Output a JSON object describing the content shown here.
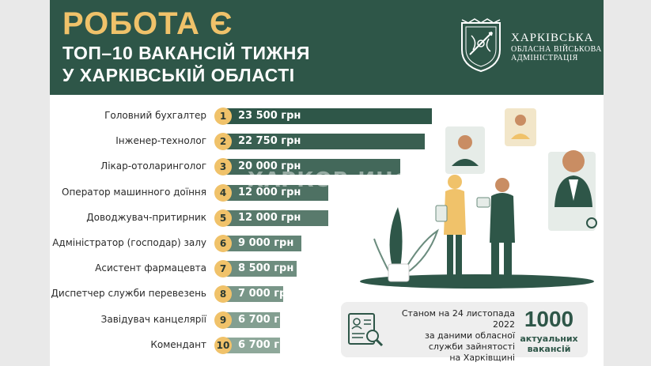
{
  "header": {
    "title": "РОБОТА Є",
    "subtitle_line1": "ТОП–10 ВАКАНСІЙ ТИЖНЯ",
    "subtitle_line2": "У ХАРКІВСЬКІЙ ОБЛАСТІ",
    "admin_line1": "ХАРКІВСЬКА",
    "admin_line2": "ОБЛАСНА ВІЙСЬКОВА",
    "admin_line3": "АДМІНІСТРАЦІЯ"
  },
  "colors": {
    "header_bg": "#2e5648",
    "accent": "#f0c26a",
    "bar_gradient": [
      "#2e5648",
      "#8ea89a"
    ]
  },
  "vacancies": [
    {
      "rank": "1",
      "title": "Головний бухгалтер",
      "salary_label": "23 500 грн",
      "salary": 23500
    },
    {
      "rank": "2",
      "title": "Інженер-технолог",
      "salary_label": "22 750 грн",
      "salary": 22750
    },
    {
      "rank": "3",
      "title": "Лікар-отоларинголог",
      "salary_label": "20 000 грн",
      "salary": 20000
    },
    {
      "rank": "4",
      "title": "Оператор машинного доїння",
      "salary_label": "12 000 грн",
      "salary": 12000
    },
    {
      "rank": "5",
      "title": "Доводжувач-притирник",
      "salary_label": "12 000 грн",
      "salary": 12000
    },
    {
      "rank": "6",
      "title": "Адміністратор (господар) залу",
      "salary_label": "9 000 грн",
      "salary": 9000
    },
    {
      "rank": "7",
      "title": "Асистент фармацевта",
      "salary_label": "8 500 грн",
      "salary": 8500
    },
    {
      "rank": "8",
      "title": "Диспетчер служби перевезень",
      "salary_label": "7 000 грн",
      "salary": 7000
    },
    {
      "rank": "9",
      "title": "Завідувач канцелярії",
      "salary_label": "6 700 грн",
      "salary": 6700
    },
    {
      "rank": "10",
      "title": "Комендант",
      "salary_label": "6 700 грн",
      "salary": 6700
    }
  ],
  "watermark": "ХАРКОВ.ИНФО",
  "info": {
    "line1": "Станом на 24 листопада 2022",
    "line2": "за даними обласної",
    "line3": "служби зайнятості",
    "line4": "на Харківщині",
    "count": "1000",
    "count_label1": "актуальних",
    "count_label2": "вакансій"
  },
  "icons": {
    "emblem": "kharkiv-coat-of-arms-icon",
    "info": "resume-search-icon"
  }
}
